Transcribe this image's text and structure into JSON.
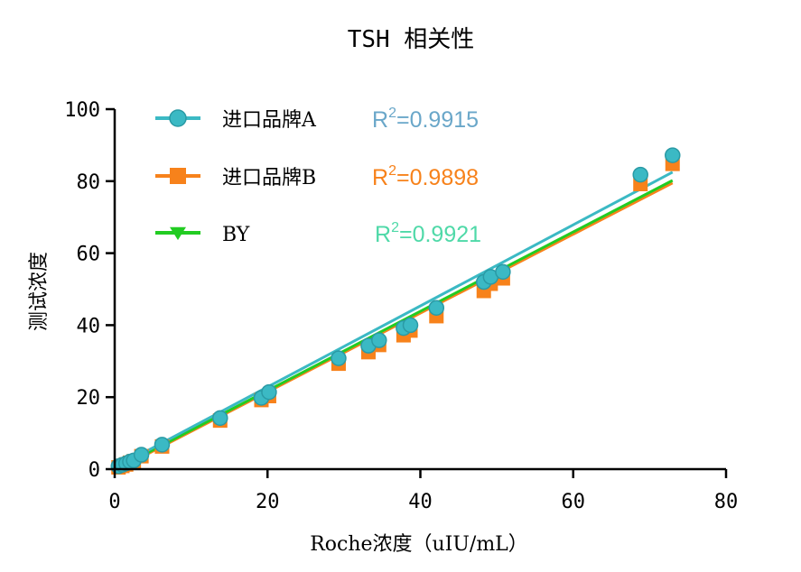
{
  "chart_data": {
    "type": "scatter",
    "title": "TSH 相关性",
    "xlabel": "Roche浓度（uIU/mL）",
    "ylabel": "测试浓度",
    "xlim": [
      0,
      80
    ],
    "ylim": [
      0,
      100
    ],
    "xticks": [
      "0",
      "20",
      "40",
      "60",
      "80"
    ],
    "yticks": [
      "0",
      "20",
      "40",
      "60",
      "80",
      "100"
    ],
    "legend_position": "top-left",
    "series": [
      {
        "name": "进口品牌A",
        "color": "#3bb9c4",
        "marker": "circle",
        "r2_label": "R",
        "r2_sup": "2",
        "r2_value": "=0.9915",
        "r2_color": "#6aa7c9",
        "fit": [
          [
            0,
            0.3
          ],
          [
            73,
            82.5
          ]
        ],
        "points": [
          [
            0.5,
            0.8
          ],
          [
            1,
            1.2
          ],
          [
            1.5,
            1.6
          ],
          [
            2,
            2.1
          ],
          [
            2.5,
            2.4
          ],
          [
            3.5,
            4
          ],
          [
            6.2,
            6.8
          ],
          [
            13.8,
            14.2
          ],
          [
            19.2,
            19.8
          ],
          [
            20.2,
            21.4
          ],
          [
            29.3,
            30.8
          ],
          [
            33.2,
            34.3
          ],
          [
            34.6,
            35.8
          ],
          [
            37.8,
            39.2
          ],
          [
            38.7,
            40
          ],
          [
            42.1,
            44.8
          ],
          [
            48.3,
            52
          ],
          [
            49.2,
            53.4
          ],
          [
            50.8,
            54.8
          ],
          [
            68.8,
            81.8
          ],
          [
            73,
            87.2
          ]
        ]
      },
      {
        "name": "进口品牌B",
        "color": "#f7821b",
        "marker": "square",
        "r2_label": "R",
        "r2_sup": "2",
        "r2_value": "=0.9898",
        "r2_color": "#f7821b",
        "fit": [
          [
            0,
            -0.5
          ],
          [
            73,
            79.5
          ]
        ],
        "points": [
          [
            0.5,
            0.5
          ],
          [
            1,
            0.9
          ],
          [
            1.5,
            1.3
          ],
          [
            2,
            1.8
          ],
          [
            2.5,
            2.2
          ],
          [
            3.5,
            3.6
          ],
          [
            6.2,
            6.3
          ],
          [
            13.8,
            13.5
          ],
          [
            19.2,
            19.2
          ],
          [
            20.2,
            20.3
          ],
          [
            29.3,
            29.3
          ],
          [
            33.2,
            32.5
          ],
          [
            34.6,
            34.5
          ],
          [
            37.8,
            37.2
          ],
          [
            38.7,
            38.5
          ],
          [
            42.1,
            42.5
          ],
          [
            48.3,
            49.5
          ],
          [
            49.2,
            51.5
          ],
          [
            50.8,
            53
          ],
          [
            68.8,
            79.2
          ],
          [
            73,
            84.8
          ]
        ]
      },
      {
        "name": "BY",
        "color": "#22cc22",
        "marker": "triangle-down",
        "r2_label": "R",
        "r2_sup": "2",
        "r2_value": "=0.9921",
        "r2_color": "#4fd9a8",
        "fit": [
          [
            0,
            -0.2
          ],
          [
            73,
            80.2
          ]
        ],
        "points": []
      }
    ]
  }
}
